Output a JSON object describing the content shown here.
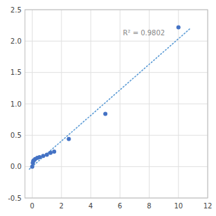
{
  "chart_data": {
    "type": "scatter",
    "series": [
      {
        "type": "scatter",
        "color": "#4472C4",
        "x": [
          0.0,
          0.04,
          0.07,
          0.12,
          0.2,
          0.35,
          0.5,
          0.75,
          1.0,
          1.25,
          1.5,
          2.5,
          5.0,
          10.0
        ],
        "values": [
          0.0,
          0.06,
          0.09,
          0.1,
          0.12,
          0.14,
          0.15,
          0.17,
          0.19,
          0.22,
          0.24,
          0.44,
          0.84,
          2.22
        ]
      },
      {
        "type": "line",
        "color": "#5B9BD5",
        "line_style": "dotted",
        "x": [
          -0.2,
          10.8
        ],
        "values": [
          -0.04,
          2.2
        ]
      }
    ],
    "annotations": [
      {
        "text": "R² = 0.9802",
        "x": 6.2,
        "y": 2.07,
        "color": "#888888"
      }
    ],
    "xlim": [
      -0.5,
      12
    ],
    "ylim": [
      -0.5,
      2.5
    ],
    "xticks": [
      0,
      2,
      4,
      6,
      8,
      10,
      12
    ],
    "yticks": [
      -0.5,
      {
        "value": 0.0,
        "label": "0.0"
      },
      0.5,
      {
        "value": 1.0,
        "label": "1.0"
      },
      1.5,
      {
        "value": 2.0,
        "label": "2.0"
      },
      2.5
    ],
    "grid": true
  }
}
